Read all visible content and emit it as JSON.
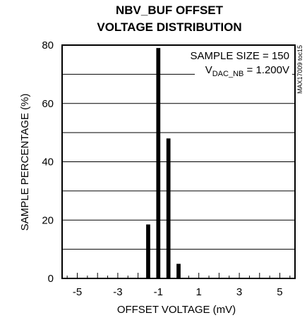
{
  "chart_data": {
    "type": "bar",
    "title_lines": [
      "NBV_BUF OFFSET",
      "VOLTAGE DISTRIBUTION"
    ],
    "xlabel": "OFFSET VOLTAGE (mV)",
    "ylabel": "SAMPLE PERCENTAGE (%)",
    "xlim": [
      -5.75,
      5.75
    ],
    "ylim": [
      0,
      80
    ],
    "x_ticks": [
      -5,
      -3,
      -1,
      1,
      3,
      5
    ],
    "y_ticks": [
      0,
      20,
      40,
      60,
      80
    ],
    "bar_width": 0.2,
    "bars": [
      {
        "x": -1.5,
        "value": 18.5
      },
      {
        "x": -1.0,
        "value": 79
      },
      {
        "x": -0.5,
        "value": 48
      },
      {
        "x": 0.0,
        "value": 5
      }
    ],
    "grid": "horizontal",
    "annotation": {
      "sample_size": "SAMPLE SIZE = 150",
      "vdac_main": "V",
      "vdac_sub": "DAC_NB",
      "vdac_value": " = 1.200V"
    },
    "figure_id": "MAX17009 toc15"
  }
}
